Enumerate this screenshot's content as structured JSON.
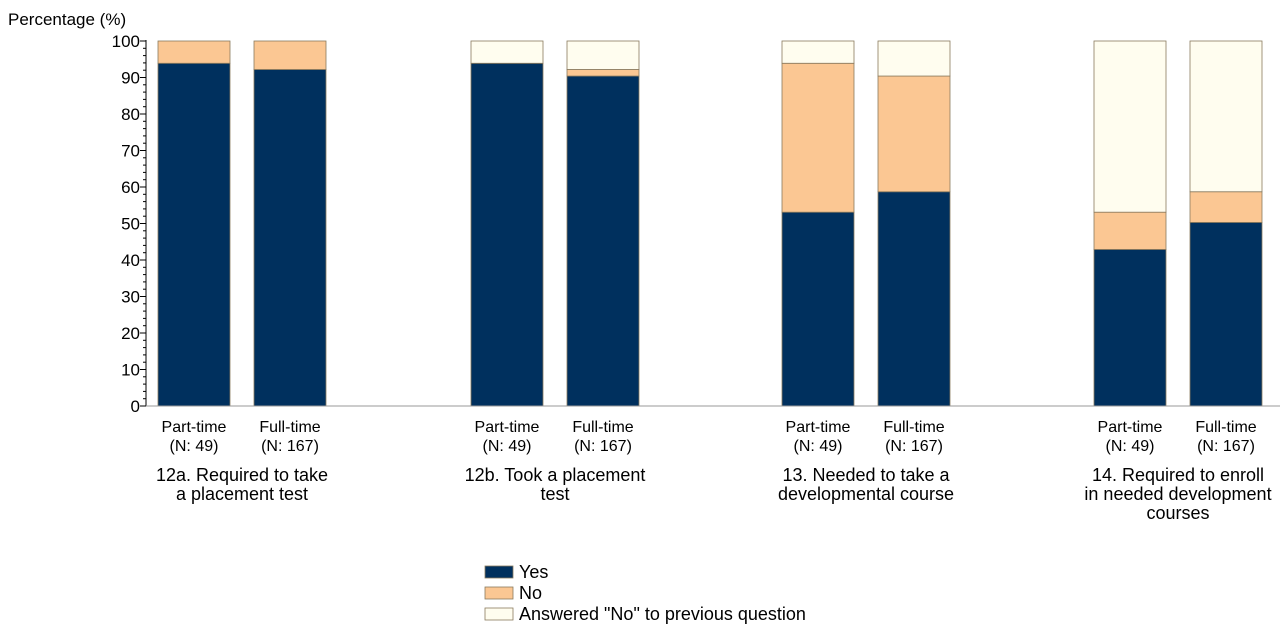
{
  "chart_data": {
    "type": "bar",
    "stacked": true,
    "ylabel": "Percentage (%)",
    "ylim": [
      0,
      100
    ],
    "yticks": [
      0,
      10,
      20,
      30,
      40,
      50,
      60,
      70,
      80,
      90,
      100
    ],
    "grid": false,
    "legend_position": "bottom",
    "groups": [
      {
        "label_lines": [
          "12a. Required to take",
          "a placement test"
        ],
        "bars": [
          {
            "label_lines": [
              "Part-time",
              "(N: 49)"
            ],
            "values": [
              93.9,
              6.1,
              0
            ]
          },
          {
            "label_lines": [
              "Full-time",
              "(N: 167)"
            ],
            "values": [
              92.2,
              7.8,
              0
            ]
          }
        ]
      },
      {
        "label_lines": [
          "12b. Took a placement",
          "test"
        ],
        "bars": [
          {
            "label_lines": [
              "Part-time",
              "(N: 49)"
            ],
            "values": [
              93.9,
              0,
              6.1
            ]
          },
          {
            "label_lines": [
              "Full-time",
              "(N: 167)"
            ],
            "values": [
              90.4,
              1.8,
              7.8
            ]
          }
        ]
      },
      {
        "label_lines": [
          "13. Needed to take a",
          "developmental course"
        ],
        "bars": [
          {
            "label_lines": [
              "Part-time",
              "(N: 49)"
            ],
            "values": [
              53.1,
              40.8,
              6.1
            ]
          },
          {
            "label_lines": [
              "Full-time",
              "(N: 167)"
            ],
            "values": [
              58.7,
              31.7,
              9.6
            ]
          }
        ]
      },
      {
        "label_lines": [
          "14. Required to enroll",
          "in needed development",
          "courses"
        ],
        "bars": [
          {
            "label_lines": [
              "Part-time",
              "(N: 49)"
            ],
            "values": [
              42.9,
              10.2,
              46.9
            ]
          },
          {
            "label_lines": [
              "Full-time",
              "(N: 167)"
            ],
            "values": [
              50.3,
              8.4,
              41.3
            ]
          }
        ]
      }
    ],
    "series": [
      {
        "name": "Yes",
        "color": "#00305e"
      },
      {
        "name": "No",
        "color": "#fbc793"
      },
      {
        "name": "Answered \"No\" to previous question",
        "color": "#fffdef"
      }
    ]
  }
}
